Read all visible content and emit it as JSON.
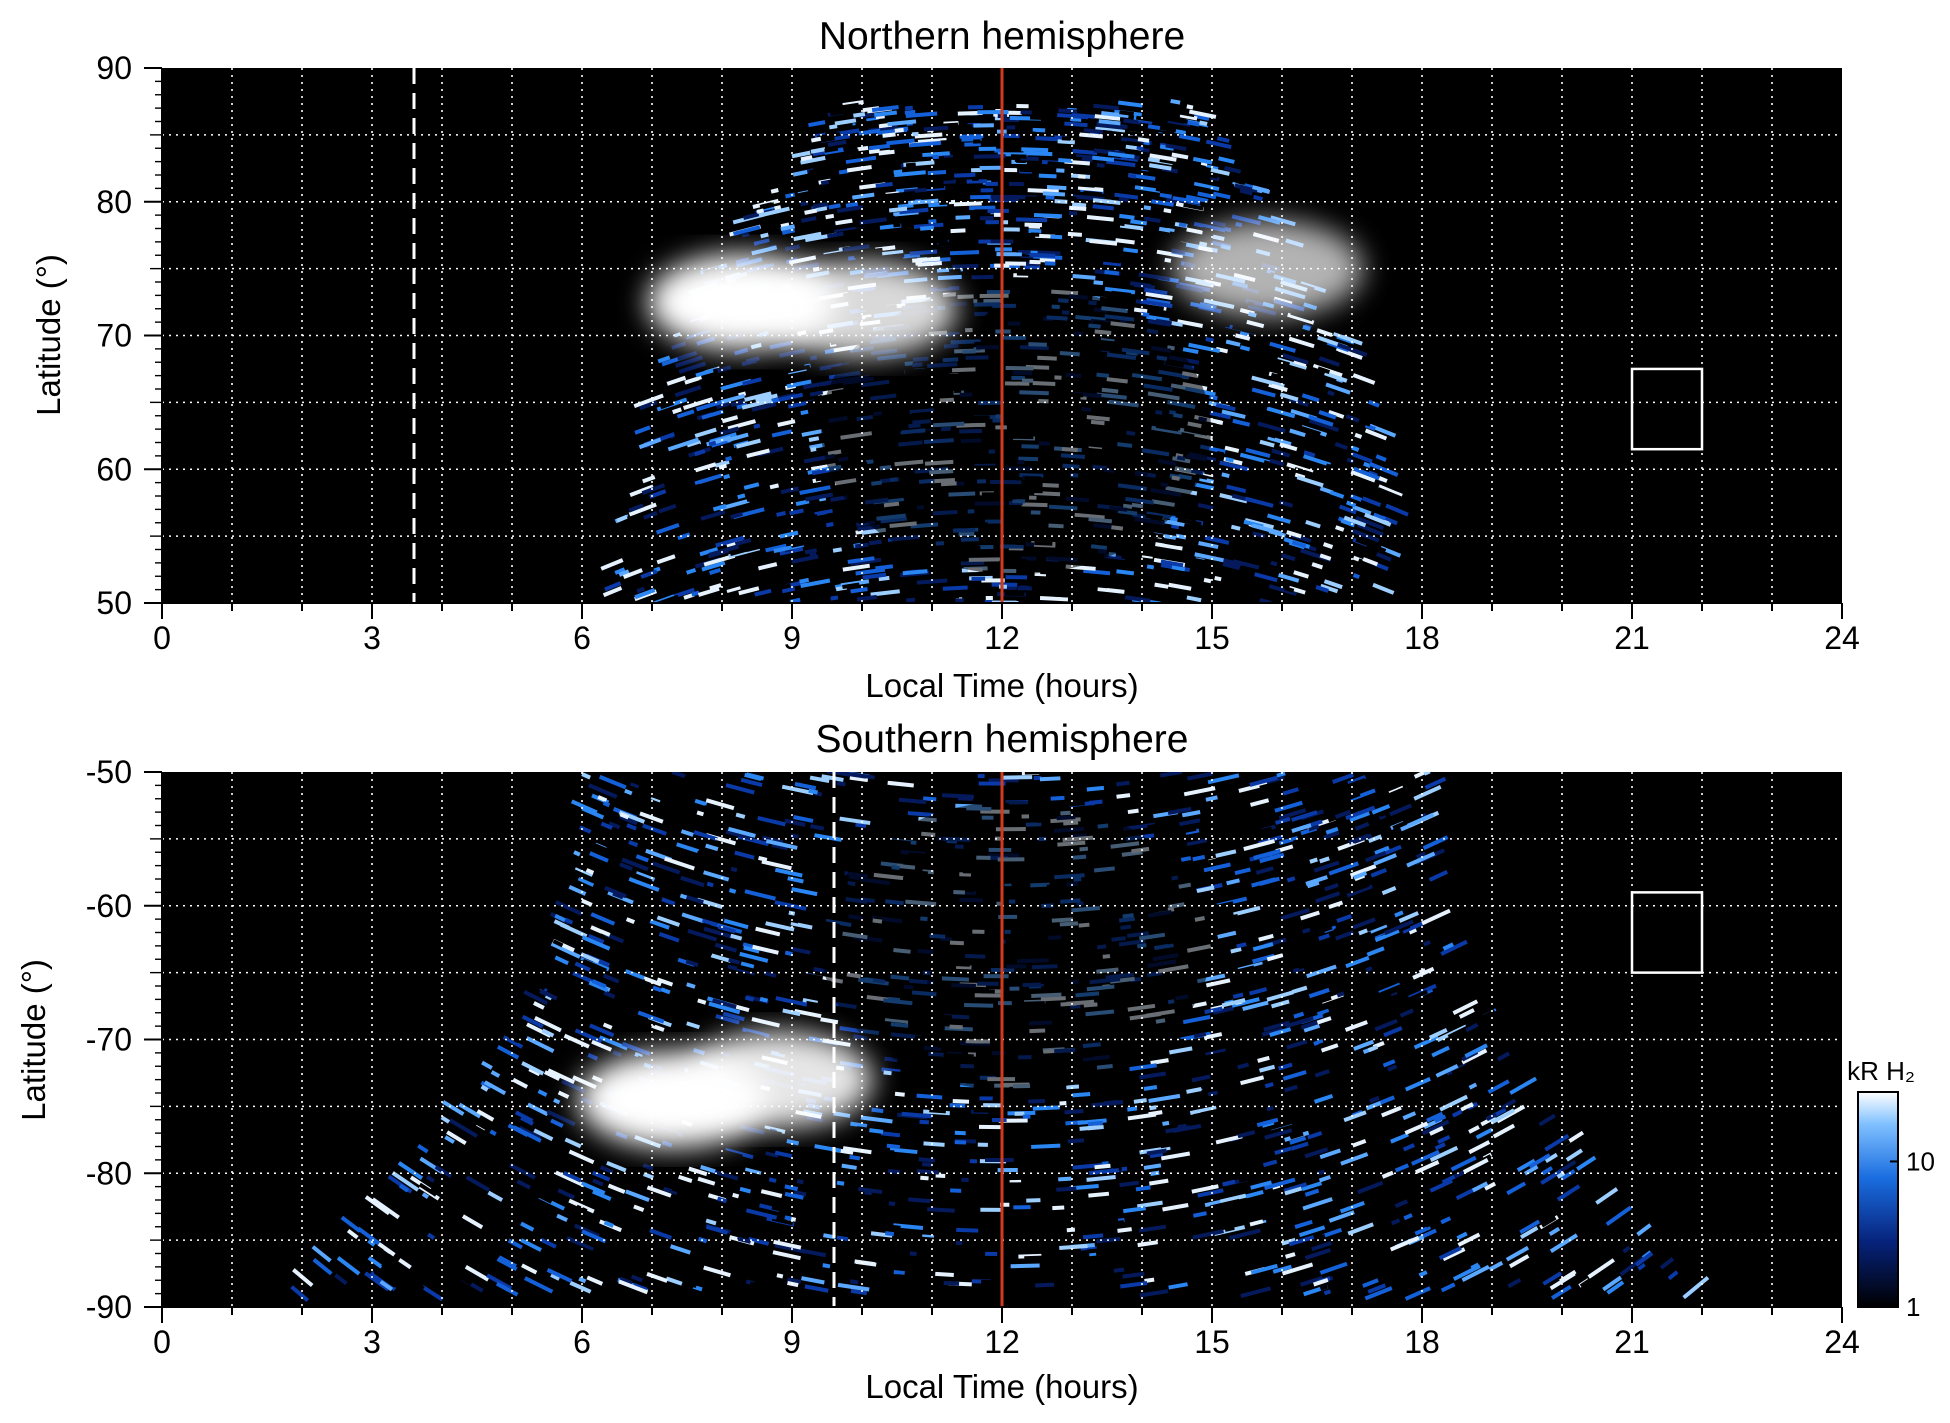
{
  "chart_data": [
    {
      "type": "heatmap",
      "title": "Northern hemisphere",
      "xlabel": "Local Time (hours)",
      "ylabel": "Latitude (°)",
      "xlim": [
        0,
        24
      ],
      "ylim": [
        50,
        90
      ],
      "xticks": [
        "0",
        "3",
        "6",
        "9",
        "12",
        "15",
        "18",
        "21",
        "24"
      ],
      "yticks": [
        "50",
        "60",
        "70",
        "80",
        "90"
      ],
      "grid": true,
      "colormap": "black-blue-white",
      "noon_line_lt": 12,
      "noon_line_color": "#d23a1c",
      "dashed_line_lt": 3.6,
      "reference_box": {
        "lt": [
          21,
          22
        ],
        "lat": [
          61.5,
          67.5
        ]
      },
      "emission_region": {
        "lat_bottom": 50,
        "lat_top_center": 87.5,
        "lt_left_at_bottom": 6.4,
        "lt_right_at_bottom": 17.8
      },
      "bright_spots": [
        {
          "lt": 8.3,
          "lat": 72.5,
          "intensity": 1.0
        },
        {
          "lt": 10.0,
          "lat": 72.0,
          "intensity": 0.85
        },
        {
          "lt": 15.8,
          "lat": 75.0,
          "intensity": 0.7
        }
      ]
    },
    {
      "type": "heatmap",
      "title": "Southern hemisphere",
      "xlabel": "Local Time (hours)",
      "ylabel": "Latitude (°)",
      "xlim": [
        0,
        24
      ],
      "ylim": [
        -90,
        -50
      ],
      "xticks": [
        "0",
        "3",
        "6",
        "9",
        "12",
        "15",
        "18",
        "21",
        "24"
      ],
      "yticks": [
        "-90",
        "-80",
        "-70",
        "-60",
        "-50"
      ],
      "grid": true,
      "colormap": "black-blue-white",
      "noon_line_lt": 12,
      "noon_line_color": "#d23a1c",
      "dashed_line_lt": 9.6,
      "reference_box": {
        "lt": [
          21,
          22
        ],
        "lat": [
          -65,
          -59
        ]
      },
      "emission_region": {
        "lat_top": -50,
        "lat_bottom": -89,
        "lt_left_at_top": 6.0,
        "lt_right_at_top": 18.2
      },
      "bright_spots": [
        {
          "lt": 7.3,
          "lat": -74.5,
          "intensity": 1.0
        },
        {
          "lt": 8.8,
          "lat": -73.0,
          "intensity": 0.9
        }
      ]
    }
  ],
  "colorbar": {
    "label": "kR H₂",
    "ticks": [
      "1",
      "10"
    ],
    "range": [
      1,
      30
    ],
    "scale": "log"
  }
}
